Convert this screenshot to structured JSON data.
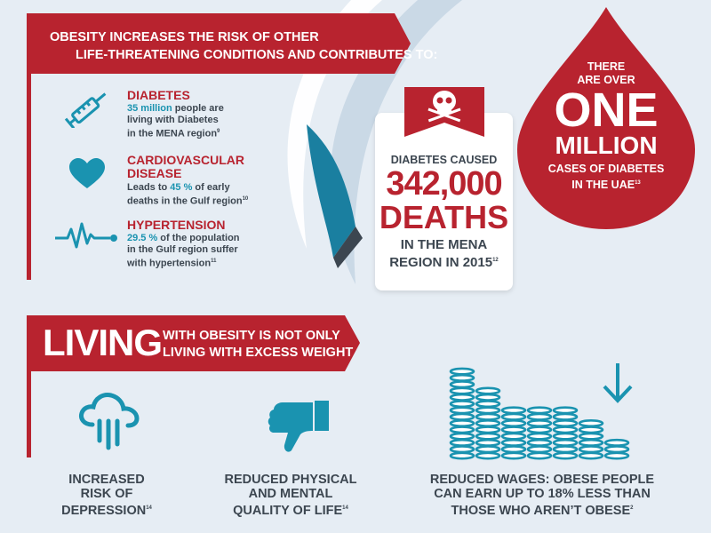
{
  "banner_top": {
    "line1": "OBESITY INCREASES THE RISK OF OTHER",
    "line2": "LIFE-THREATENING CONDITIONS AND CONTRIBUTES TO:"
  },
  "conditions": [
    {
      "title": "DIABETES",
      "title2": "",
      "highlight": "35 million",
      "text1": " people are",
      "text2": "living with Diabetes",
      "text3": "in the MENA region",
      "ref": "9"
    },
    {
      "title": "CARDIOVASCULAR",
      "title2": "DISEASE",
      "text1": "Leads to ",
      "highlight": "45 %",
      "text1b": " of early",
      "text2": "deaths in the Gulf region",
      "ref": "10"
    },
    {
      "title": "HYPERTENSION",
      "title2": "",
      "highlight": "29.5 %",
      "text1": " of the population",
      "text2": "in the Gulf region suffer",
      "text3": "with hypertension",
      "ref": "11"
    }
  ],
  "deaths_card": {
    "line1": "DIABETES CAUSED",
    "number": "342,000",
    "deaths": "DEATHS",
    "line4": "IN THE MENA",
    "line5": "REGION IN 2015",
    "ref": "12"
  },
  "drop": {
    "line1": "THERE",
    "line2": "ARE OVER",
    "big1": "ONE",
    "big2": "MILLION",
    "line5": "CASES OF DIABETES",
    "line6": "IN THE UAE",
    "ref": "13"
  },
  "banner_bottom": {
    "big": "LIVING",
    "line1": "WITH OBESITY IS NOT ONLY",
    "line2": "LIVING WITH EXCESS WEIGHT"
  },
  "bottom_items": [
    {
      "lines": [
        "INCREASED",
        "RISK OF",
        "DEPRESSION"
      ],
      "ref": "14"
    },
    {
      "lines": [
        "REDUCED PHYSICAL",
        "AND MENTAL",
        "QUALITY OF LIFE"
      ],
      "ref": "14"
    },
    {
      "lines": [
        "REDUCED WAGES: OBESE PEOPLE",
        "CAN EARN UP TO 18% LESS THAN",
        "THOSE WHO AREN’T OBESE"
      ],
      "ref": "2"
    }
  ],
  "colors": {
    "red": "#b8232f",
    "teal": "#1a93b0",
    "background": "#e6edf4",
    "dark_text": "#3c4650"
  }
}
